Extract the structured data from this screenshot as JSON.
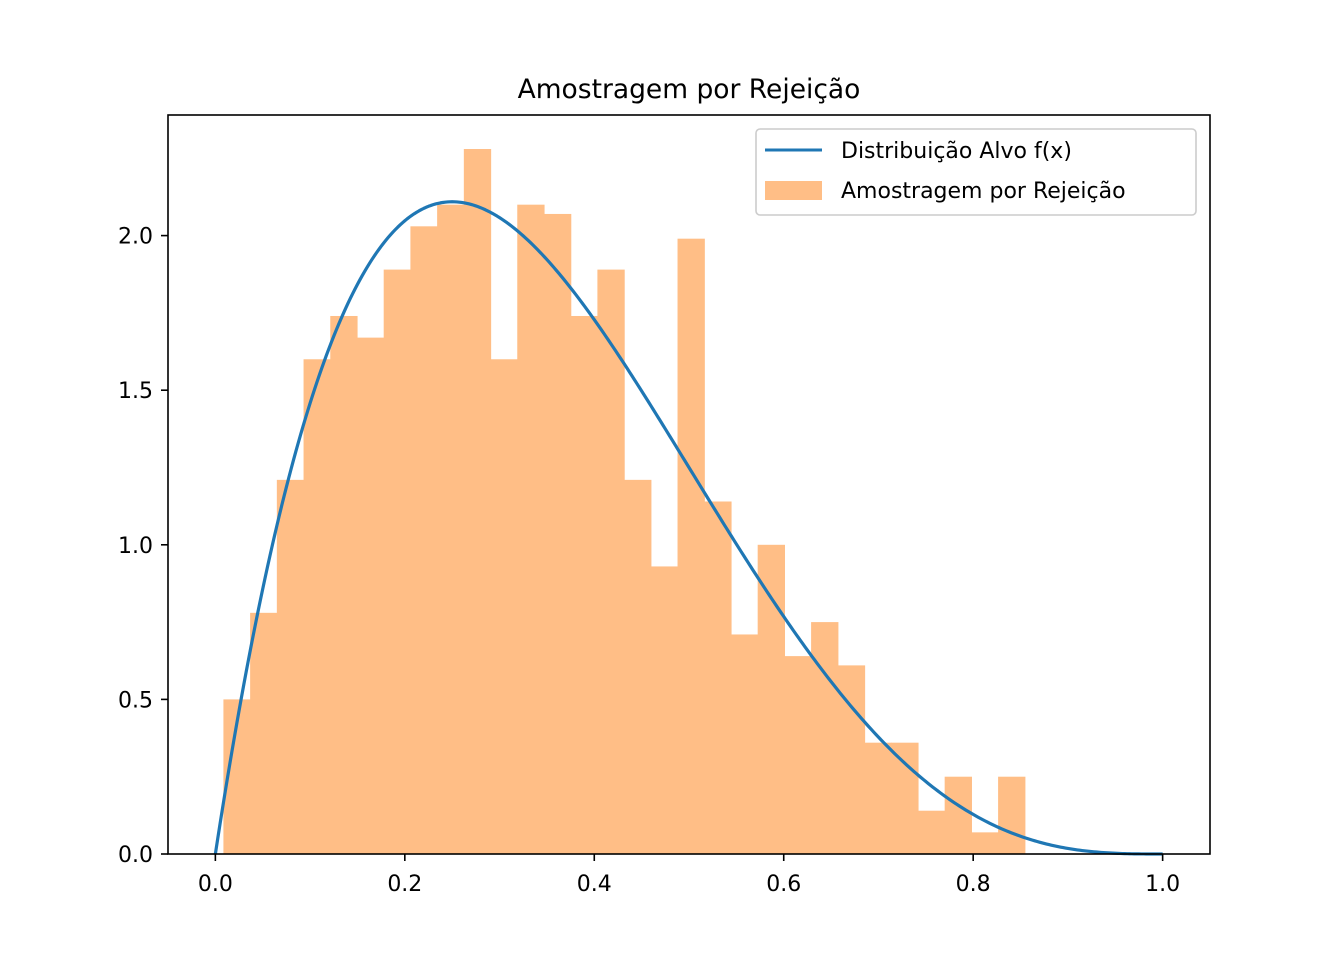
{
  "chart_data": {
    "type": "histogram",
    "title": "Amostragem por Rejeição",
    "xlabel": "",
    "ylabel": "",
    "xlim": [
      -0.05,
      1.05
    ],
    "ylim": [
      0,
      2.39
    ],
    "xticks": [
      0.0,
      0.2,
      0.4,
      0.6,
      0.8,
      1.0
    ],
    "xtick_labels": [
      "0.0",
      "0.2",
      "0.4",
      "0.6",
      "0.8",
      "1.0"
    ],
    "yticks": [
      0.0,
      0.5,
      1.0,
      1.5,
      2.0
    ],
    "ytick_labels": [
      "0.0",
      "0.5",
      "1.0",
      "1.5",
      "2.0"
    ],
    "grid": false,
    "legend_position": "top-right",
    "series": [
      {
        "name": "Distribuição Alvo f(x)",
        "type": "line",
        "color": "#1f77b4",
        "function": "f(x) = 20 x (1-x)^3",
        "x_range": [
          0,
          1
        ]
      },
      {
        "name": "Amostragem por Rejeição",
        "type": "histogram",
        "color": "#ffbe86",
        "bin_edges": [
          0.0085,
          0.0367,
          0.0649,
          0.0931,
          0.1213,
          0.1495,
          0.1777,
          0.2059,
          0.2341,
          0.2623,
          0.2905,
          0.3187,
          0.3469,
          0.3751,
          0.4033,
          0.4315,
          0.4597,
          0.4879,
          0.5161,
          0.5443,
          0.5725,
          0.6007,
          0.6289,
          0.6571,
          0.6853,
          0.7135,
          0.7417,
          0.7699,
          0.7981,
          0.8263,
          0.8545
        ],
        "values": [
          0.5,
          0.78,
          1.21,
          1.6,
          1.74,
          1.67,
          1.89,
          2.03,
          2.1,
          2.28,
          1.6,
          2.1,
          2.07,
          1.74,
          1.89,
          1.21,
          0.93,
          1.99,
          1.14,
          0.71,
          1.0,
          0.64,
          0.75,
          0.61,
          0.36,
          0.36,
          0.14,
          0.25,
          0.07,
          0.25
        ]
      }
    ]
  }
}
